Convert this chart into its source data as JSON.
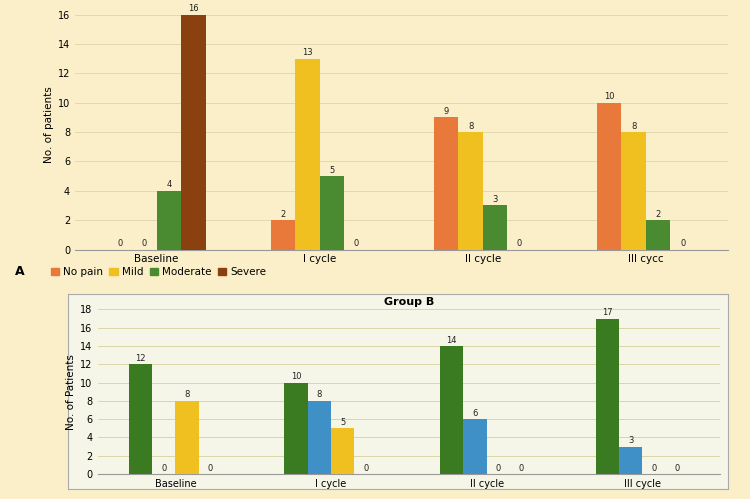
{
  "background_color": "#faefc8",
  "groupA": {
    "categories": [
      "Baseline",
      "I cycle",
      "II cycle",
      "III cycc"
    ],
    "series_order": [
      "No pain",
      "Mild",
      "Moderate",
      "Severe"
    ],
    "data": {
      "No pain": [
        0,
        2,
        9,
        10
      ],
      "Mild": [
        0,
        13,
        8,
        8
      ],
      "Moderate": [
        4,
        5,
        3,
        2
      ],
      "Severe": [
        16,
        0,
        0,
        0
      ]
    },
    "colors": {
      "No pain": "#e8793a",
      "Mild": "#f0c020",
      "Moderate": "#4a8a30",
      "Severe": "#8B4010"
    },
    "ylabel": "No. of patients",
    "ylim": [
      0,
      17
    ],
    "yticks": [
      0,
      2,
      4,
      6,
      8,
      10,
      12,
      14,
      16
    ]
  },
  "groupB": {
    "title": "Group B",
    "categories": [
      "Baseline",
      "I cycle",
      "II cycle",
      "III cycle"
    ],
    "series_order": [
      "Moderate",
      "No pain",
      "Mild",
      "Severe"
    ],
    "data": {
      "Moderate": [
        12,
        10,
        14,
        17
      ],
      "No pain": [
        0,
        8,
        6,
        3
      ],
      "Mild": [
        8,
        5,
        0,
        0
      ],
      "Severe": [
        0,
        0,
        0,
        0
      ]
    },
    "colors": {
      "Moderate": "#3a7a20",
      "No pain": "#4090c8",
      "Mild": "#f0c020",
      "Severe": "#c04020"
    },
    "ylabel": "No. of Patients",
    "ylim": [
      0,
      18
    ],
    "yticks": [
      0,
      2,
      4,
      6,
      8,
      10,
      12,
      14,
      16,
      18
    ],
    "bg_color": "#f5f5e8",
    "border_color": "#aaaaaa"
  },
  "legend_A": {
    "label": "A",
    "items": [
      {
        "name": "No pain",
        "color": "#e8793a"
      },
      {
        "name": "Mild",
        "color": "#f0c020"
      },
      {
        "name": "Moderate",
        "color": "#4a8a30"
      },
      {
        "name": "Severe",
        "color": "#8B4010"
      }
    ]
  }
}
